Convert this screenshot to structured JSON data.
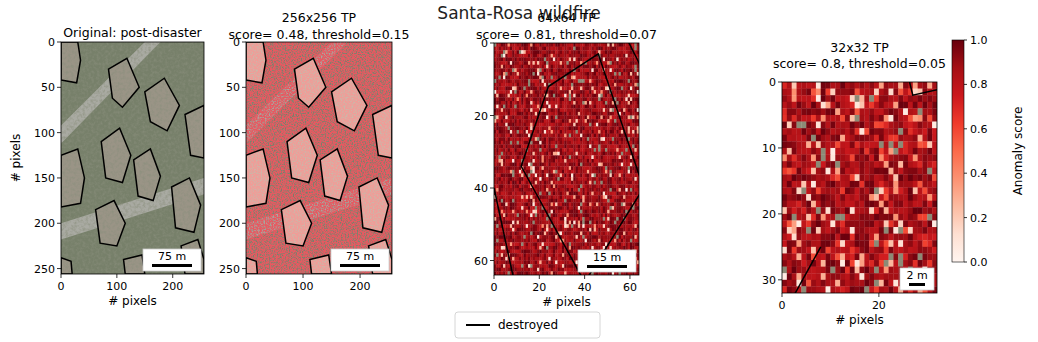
{
  "title": "Santa-Rosa wildfire",
  "key": {
    "name": "destroyed",
    "color": "#000000"
  },
  "chart_data": [
    {
      "type": "image",
      "title": "Original: post-disaster",
      "xlabel": "# pixels",
      "ylabel": "# pixels",
      "xlim": [
        0,
        256
      ],
      "ylim": [
        256,
        0
      ],
      "xticks": [
        0,
        100,
        200
      ],
      "yticks": [
        0,
        50,
        100,
        150,
        200,
        250
      ],
      "annotations": [
        "75 m"
      ]
    },
    {
      "type": "heatmap",
      "title": "256x256 TP",
      "subtitle": "score= 0.48, threshold=0.15",
      "xlim": [
        0,
        256
      ],
      "ylim": [
        256,
        0
      ],
      "xticks": [
        0,
        100,
        200
      ],
      "yticks": [
        0,
        50,
        100,
        150,
        200,
        250
      ],
      "annotations": [
        "75 m"
      ]
    },
    {
      "type": "heatmap",
      "title": "64x64 TP",
      "subtitle": "score= 0.81, threshold=0.07",
      "xlabel": "# pixels",
      "xlim": [
        0,
        64
      ],
      "ylim": [
        64,
        0
      ],
      "xticks": [
        0,
        20,
        40,
        60
      ],
      "yticks": [
        0,
        20,
        40,
        60
      ],
      "annotations": [
        "15 m"
      ]
    },
    {
      "type": "heatmap",
      "title": "32x32 TP",
      "subtitle": "score= 0.8, threshold=0.05",
      "xlabel": "# pixels",
      "xlim": [
        0,
        32
      ],
      "ylim": [
        32,
        0
      ],
      "xticks": [
        0,
        20
      ],
      "yticks": [
        0,
        10,
        20,
        30
      ],
      "annotations": [
        "2 m"
      ],
      "colorbar": {
        "label": "Anomaly score",
        "range": [
          0,
          1
        ],
        "ticks": [
          {
            "value": 0,
            "label": "0.0"
          },
          {
            "value": 0.2,
            "label": "0.2"
          },
          {
            "value": 0.4,
            "label": "0.4"
          },
          {
            "value": 0.6,
            "label": "0.6"
          },
          {
            "value": 0.8,
            "label": "0.8"
          },
          {
            "value": 1,
            "label": "1.0"
          }
        ]
      }
    }
  ]
}
